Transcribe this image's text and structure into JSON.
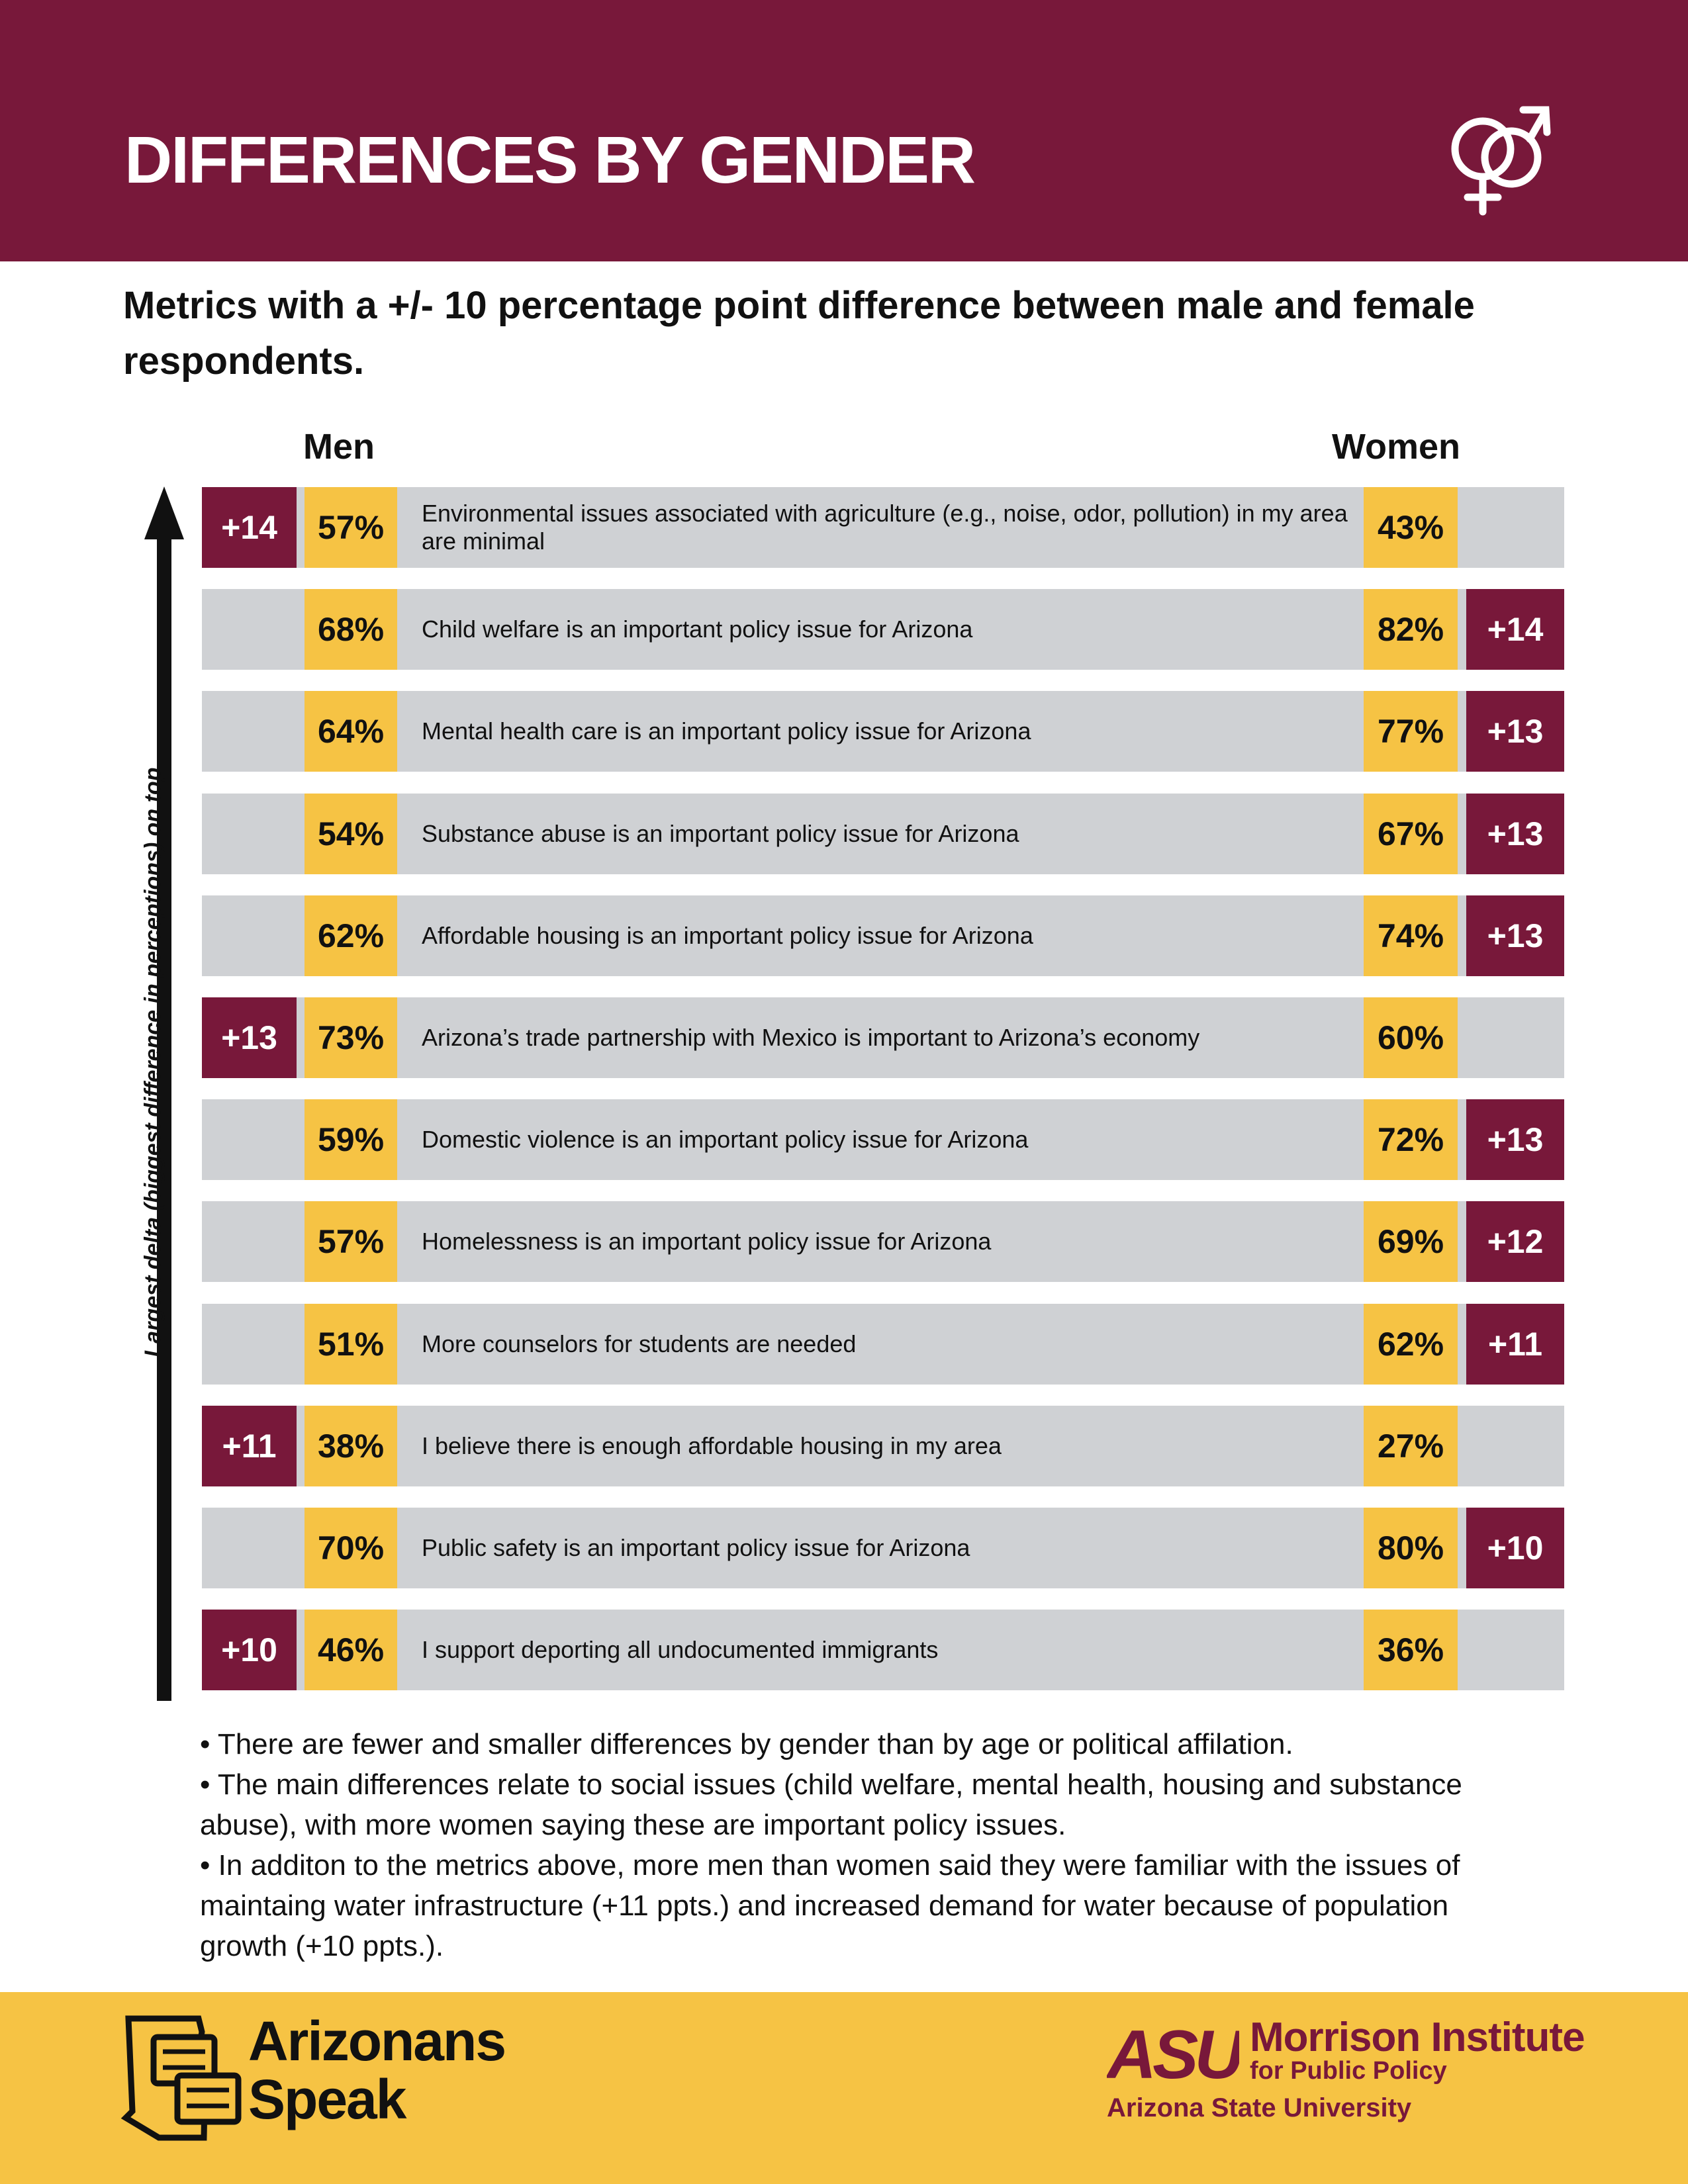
{
  "header": {
    "title": "DIFFERENCES BY GENDER",
    "icon": "gender-symbol-icon",
    "color": "#78183a"
  },
  "subtitle": "Metrics with a +/- 10 percentage point difference between male and female respondents.",
  "columns": {
    "men": "Men",
    "women": "Women"
  },
  "axis_label": "Largest delta (biggest difference in perceptions) on top",
  "colors": {
    "maroon": "#78183a",
    "gold": "#f6c344",
    "gray": "#cfd1d4"
  },
  "rows": [
    {
      "label": "Environmental issues associated with agriculture (e.g., noise, odor, pollution) in my area are minimal",
      "men": "57%",
      "women": "43%",
      "delta": "+14",
      "higher": "men"
    },
    {
      "label": "Child welfare is an important policy issue for Arizona",
      "men": "68%",
      "women": "82%",
      "delta": "+14",
      "higher": "women"
    },
    {
      "label": "Mental health care is an important policy issue for Arizona",
      "men": "64%",
      "women": "77%",
      "delta": "+13",
      "higher": "women"
    },
    {
      "label": "Substance abuse is an important policy issue for Arizona",
      "men": "54%",
      "women": "67%",
      "delta": "+13",
      "higher": "women"
    },
    {
      "label": "Affordable housing is an important policy issue for Arizona",
      "men": "62%",
      "women": "74%",
      "delta": "+13",
      "higher": "women"
    },
    {
      "label": "Arizona’s trade partnership with Mexico is important to Arizona’s economy",
      "men": "73%",
      "women": "60%",
      "delta": "+13",
      "higher": "men"
    },
    {
      "label": "Domestic violence is an important policy issue for Arizona",
      "men": "59%",
      "women": "72%",
      "delta": "+13",
      "higher": "women"
    },
    {
      "label": "Homelessness is an important policy issue for Arizona",
      "men": "57%",
      "women": "69%",
      "delta": "+12",
      "higher": "women"
    },
    {
      "label": "More counselors for students are needed",
      "men": "51%",
      "women": "62%",
      "delta": "+11",
      "higher": "women"
    },
    {
      "label": "I believe there is enough affordable housing in my area",
      "men": "38%",
      "women": "27%",
      "delta": "+11",
      "higher": "men"
    },
    {
      "label": "Public safety is an important policy issue for Arizona",
      "men": "70%",
      "women": "80%",
      "delta": "+10",
      "higher": "women"
    },
    {
      "label": "I support deporting all undocumented immigrants",
      "men": "46%",
      "women": "36%",
      "delta": "+10",
      "higher": "men"
    }
  ],
  "notes": [
    "• There are fewer and smaller differences by gender than by age or political affilation.",
    "• The main differences relate to social issues (child welfare, mental health, housing and substance abuse), with more women saying these are important policy issues.",
    "• In additon to the metrics above, more men than women said they were familiar with the issues of maintaing water infrastructure (+11 ppts.) and increased demand for water because of population growth (+10 ppts.)."
  ],
  "footer": {
    "left_logo_line1": "Arizonans",
    "left_logo_line2": "Speak",
    "right_logo_mark": "ASU",
    "right_logo_name": "Morrison Institute",
    "right_logo_sub": "for Public Policy",
    "right_logo_university": "Arizona State University"
  }
}
